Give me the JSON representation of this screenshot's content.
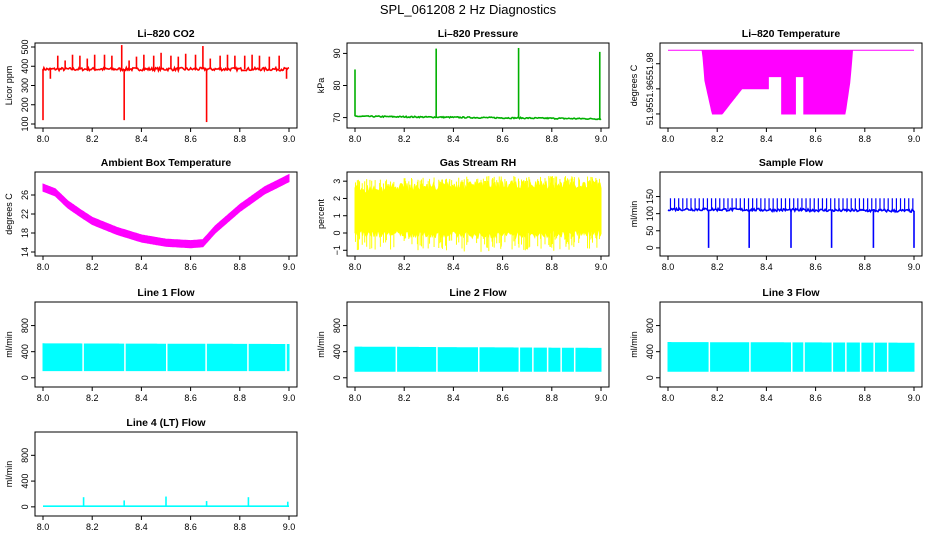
{
  "page": {
    "title": "SPL_061208  2 Hz Diagnostics"
  },
  "chart_data": [
    {
      "id": "co2",
      "type": "line",
      "title": "Li–820 CO2",
      "ylabel": "Licor ppm",
      "color": "#ff0000",
      "xlim": [
        8.0,
        9.0
      ],
      "ylim": [
        100,
        500
      ],
      "xticks": [
        "8.0",
        "8.2",
        "8.4",
        "8.6",
        "8.8",
        "9.0"
      ],
      "yticks": [
        100,
        200,
        300,
        400,
        500
      ],
      "ytick_labels": [
        "100",
        "200",
        "300",
        "400",
        "500"
      ],
      "baseline": [
        [
          8.0,
          385
        ],
        [
          9.0,
          385
        ]
      ],
      "noise": 8,
      "spike_width": 0.003,
      "spikes": [
        [
          8.0,
          120
        ],
        [
          8.03,
          335
        ],
        [
          8.06,
          455
        ],
        [
          8.09,
          430
        ],
        [
          8.12,
          460
        ],
        [
          8.15,
          455
        ],
        [
          8.18,
          440
        ],
        [
          8.21,
          460
        ],
        [
          8.25,
          460
        ],
        [
          8.28,
          455
        ],
        [
          8.32,
          510
        ],
        [
          8.33,
          120
        ],
        [
          8.35,
          430
        ],
        [
          8.38,
          450
        ],
        [
          8.41,
          460
        ],
        [
          8.45,
          455
        ],
        [
          8.48,
          470
        ],
        [
          8.52,
          455
        ],
        [
          8.55,
          450
        ],
        [
          8.58,
          465
        ],
        [
          8.62,
          460
        ],
        [
          8.65,
          505
        ],
        [
          8.665,
          110
        ],
        [
          8.68,
          440
        ],
        [
          8.72,
          455
        ],
        [
          8.75,
          460
        ],
        [
          8.78,
          455
        ],
        [
          8.82,
          455
        ],
        [
          8.85,
          460
        ],
        [
          8.88,
          455
        ],
        [
          8.92,
          450
        ],
        [
          8.96,
          455
        ],
        [
          8.99,
          335
        ]
      ]
    },
    {
      "id": "pressure",
      "type": "line",
      "title": "Li–820 Pressure",
      "ylabel": "kPa",
      "color": "#00b000",
      "xlim": [
        8.0,
        9.0
      ],
      "ylim": [
        68,
        92
      ],
      "xticks": [
        "8.0",
        "8.2",
        "8.4",
        "8.6",
        "8.8",
        "9.0"
      ],
      "yticks": [
        70,
        80,
        90
      ],
      "ytick_labels": [
        "70",
        "80",
        "90"
      ],
      "baseline": [
        [
          8.0,
          70.4
        ],
        [
          9.0,
          69.6
        ]
      ],
      "noise": 0.2,
      "spike_width": 0.003,
      "spikes": [
        [
          8.0,
          85
        ],
        [
          8.33,
          91.5
        ],
        [
          8.665,
          91.7
        ],
        [
          8.995,
          90.5
        ]
      ]
    },
    {
      "id": "licor-temp",
      "type": "band",
      "title": "Li–820 Temperature",
      "ylabel": "degrees C",
      "color": "#ff00ff",
      "xlim": [
        8.0,
        9.0
      ],
      "ylim": [
        51.944,
        51.99
      ],
      "xticks": [
        "8.0",
        "8.2",
        "8.4",
        "8.6",
        "8.8",
        "9.0"
      ],
      "yticks": [
        51.95,
        51.965,
        51.98
      ],
      "ytick_labels": [
        "51.95",
        "51.965",
        "51.98"
      ],
      "top": [
        [
          8.0,
          51.988
        ],
        [
          9.0,
          51.988
        ]
      ],
      "bottom": [
        [
          8.0,
          51.988
        ],
        [
          8.14,
          51.988
        ],
        [
          8.15,
          51.97
        ],
        [
          8.18,
          51.95
        ],
        [
          8.22,
          51.95
        ],
        [
          8.3,
          51.965
        ],
        [
          8.42,
          51.965
        ],
        [
          8.46,
          51.95
        ],
        [
          8.72,
          51.95
        ],
        [
          8.74,
          51.97
        ],
        [
          8.75,
          51.988
        ],
        [
          9.0,
          51.988
        ]
      ],
      "gaps": [
        [
          8.41,
          8.46,
          51.972
        ],
        [
          8.52,
          8.55,
          51.972
        ]
      ]
    },
    {
      "id": "ambient",
      "type": "band",
      "title": "Ambient Box Temperature",
      "ylabel": "degrees C",
      "color": "#ff00ff",
      "xlim": [
        8.0,
        9.0
      ],
      "ylim": [
        14,
        30
      ],
      "xticks": [
        "8.0",
        "8.2",
        "8.4",
        "8.6",
        "8.8",
        "9.0"
      ],
      "yticks": [
        14,
        18,
        22,
        26
      ],
      "ytick_labels": [
        "14",
        "18",
        "22",
        "26"
      ],
      "top": [
        [
          8.0,
          28.3
        ],
        [
          8.05,
          27.3
        ],
        [
          8.1,
          24.8
        ],
        [
          8.15,
          23.0
        ],
        [
          8.2,
          21.3
        ],
        [
          8.3,
          19.2
        ],
        [
          8.4,
          17.6
        ],
        [
          8.5,
          16.7
        ],
        [
          8.6,
          16.4
        ],
        [
          8.65,
          16.6
        ],
        [
          8.7,
          19.5
        ],
        [
          8.8,
          24.0
        ],
        [
          8.9,
          27.7
        ],
        [
          9.0,
          30.3
        ]
      ],
      "bottom": [
        [
          8.0,
          26.8
        ],
        [
          8.05,
          25.8
        ],
        [
          8.1,
          23.3
        ],
        [
          8.15,
          21.5
        ],
        [
          8.2,
          19.8
        ],
        [
          8.3,
          17.7
        ],
        [
          8.4,
          16.1
        ],
        [
          8.5,
          15.2
        ],
        [
          8.6,
          14.9
        ],
        [
          8.65,
          15.1
        ],
        [
          8.7,
          18.0
        ],
        [
          8.8,
          22.5
        ],
        [
          8.9,
          26.2
        ],
        [
          9.0,
          28.8
        ]
      ]
    },
    {
      "id": "rh",
      "type": "band",
      "title": "Gas Stream RH",
      "ylabel": "percent",
      "color": "#ffff00",
      "xlim": [
        8.0,
        9.0
      ],
      "ylim": [
        -1.1,
        3.3
      ],
      "xticks": [
        "8.0",
        "8.2",
        "8.4",
        "8.6",
        "8.8",
        "9.0"
      ],
      "yticks": [
        -1,
        0,
        1,
        2,
        3
      ],
      "ytick_labels": [
        "−1",
        "0",
        "1",
        "2",
        "3"
      ],
      "top": [
        [
          8.0,
          2.8
        ],
        [
          8.5,
          3.0
        ],
        [
          9.0,
          3.0
        ]
      ],
      "bottom": [
        [
          8.0,
          -0.2
        ],
        [
          8.5,
          -0.3
        ],
        [
          9.0,
          -0.2
        ]
      ],
      "jitter": 0.5
    },
    {
      "id": "sample",
      "type": "line",
      "title": "Sample Flow",
      "ylabel": "ml/min",
      "color": "#0000ff",
      "xlim": [
        8.0,
        9.0
      ],
      "ylim": [
        -12,
        210
      ],
      "xticks": [
        "8.0",
        "8.2",
        "8.4",
        "8.6",
        "8.8",
        "9.0"
      ],
      "yticks": [
        0,
        50,
        100,
        150
      ],
      "ytick_labels": [
        "0",
        "50",
        "100",
        "150"
      ],
      "baseline": [
        [
          8.0,
          113
        ],
        [
          9.0,
          108
        ]
      ],
      "noise": 4,
      "spike_width": 0.004,
      "spikes": [
        [
          8.165,
          0
        ],
        [
          8.33,
          0
        ],
        [
          8.5,
          0
        ],
        [
          8.665,
          0
        ],
        [
          8.835,
          0
        ],
        [
          9.0,
          0
        ]
      ],
      "ticks_up": 145
    },
    {
      "id": "line1",
      "type": "band",
      "title": "Line 1 Flow",
      "ylabel": "ml/min",
      "color": "#00ffff",
      "xlim": [
        8.0,
        9.0
      ],
      "ylim": [
        -80,
        1100
      ],
      "xticks": [
        "8.0",
        "8.2",
        "8.4",
        "8.6",
        "8.8",
        "9.0"
      ],
      "yticks": [
        0,
        400,
        800
      ],
      "ytick_labels": [
        "0",
        "400",
        "800"
      ],
      "top": [
        [
          8.0,
          520
        ],
        [
          9.0,
          510
        ]
      ],
      "bottom": [
        [
          8.0,
          110
        ],
        [
          9.0,
          110
        ]
      ],
      "gaps": [
        [
          8.16,
          8.165
        ],
        [
          8.33,
          8.335
        ],
        [
          8.5,
          8.505
        ],
        [
          8.66,
          8.665
        ],
        [
          8.83,
          8.835
        ],
        [
          8.985,
          8.99
        ]
      ]
    },
    {
      "id": "line2",
      "type": "band",
      "title": "Line 2 Flow",
      "ylabel": "ml/min",
      "color": "#00ffff",
      "xlim": [
        8.0,
        9.0
      ],
      "ylim": [
        -80,
        1100
      ],
      "xticks": [
        "8.0",
        "8.2",
        "8.4",
        "8.6",
        "8.8",
        "9.0"
      ],
      "yticks": [
        0,
        400,
        800
      ],
      "ytick_labels": [
        "0",
        "400",
        "800"
      ],
      "top": [
        [
          8.0,
          470
        ],
        [
          9.0,
          450
        ]
      ],
      "bottom": [
        [
          8.0,
          100
        ],
        [
          9.0,
          100
        ]
      ],
      "gaps": [
        [
          8.165,
          8.17
        ],
        [
          8.33,
          8.335
        ],
        [
          8.5,
          8.505
        ],
        [
          8.665,
          8.67
        ],
        [
          8.72,
          8.725
        ],
        [
          8.78,
          8.785
        ],
        [
          8.835,
          8.84
        ],
        [
          8.89,
          8.895
        ]
      ]
    },
    {
      "id": "line3",
      "type": "band",
      "title": "Line 3 Flow",
      "ylabel": "ml/min",
      "color": "#00ffff",
      "xlim": [
        8.0,
        9.0
      ],
      "ylim": [
        -80,
        1100
      ],
      "xticks": [
        "8.0",
        "8.2",
        "8.4",
        "8.6",
        "8.8",
        "9.0"
      ],
      "yticks": [
        0,
        400,
        800
      ],
      "ytick_labels": [
        "0",
        "400",
        "800"
      ],
      "top": [
        [
          8.0,
          540
        ],
        [
          9.0,
          530
        ]
      ],
      "bottom": [
        [
          8.0,
          100
        ],
        [
          9.0,
          100
        ]
      ],
      "gaps": [
        [
          8.165,
          8.17
        ],
        [
          8.33,
          8.335
        ],
        [
          8.5,
          8.505
        ],
        [
          8.55,
          8.555
        ],
        [
          8.665,
          8.67
        ],
        [
          8.72,
          8.725
        ],
        [
          8.78,
          8.785
        ],
        [
          8.835,
          8.84
        ],
        [
          8.89,
          8.895
        ]
      ]
    },
    {
      "id": "line4",
      "type": "line",
      "title": "Line 4 (LT) Flow",
      "ylabel": "ml/min",
      "color": "#00ffff",
      "xlim": [
        8.0,
        9.0
      ],
      "ylim": [
        -80,
        1100
      ],
      "xticks": [
        "8.0",
        "8.2",
        "8.4",
        "8.6",
        "8.8",
        "9.0"
      ],
      "yticks": [
        0,
        400,
        800
      ],
      "ytick_labels": [
        "0",
        "400",
        "800"
      ],
      "baseline": [
        [
          8.0,
          10
        ],
        [
          9.0,
          10
        ]
      ],
      "noise": 0,
      "spike_width": 0.003,
      "spikes": [
        [
          8.165,
          150
        ],
        [
          8.33,
          100
        ],
        [
          8.5,
          160
        ],
        [
          8.665,
          90
        ],
        [
          8.835,
          150
        ],
        [
          8.995,
          80
        ]
      ]
    }
  ]
}
